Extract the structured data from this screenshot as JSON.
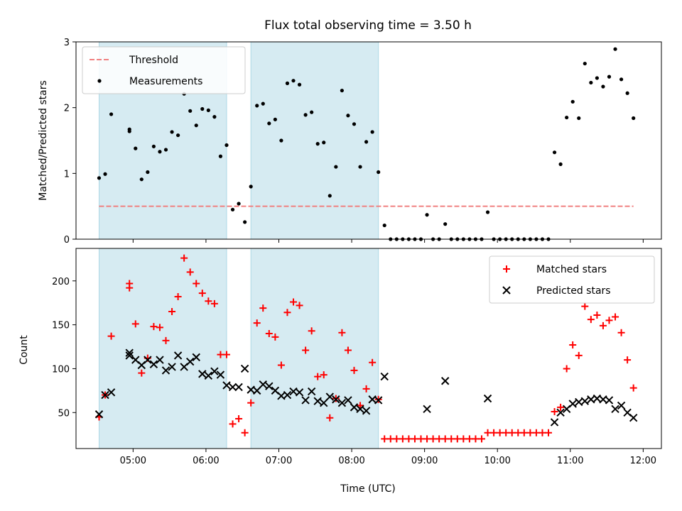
{
  "chart_data": [
    {
      "type": "scatter",
      "title": "Flux total observing time = 3.50 h",
      "xlabel": "",
      "ylabel": "Matched/Predicted stars",
      "ylim": [
        0,
        3
      ],
      "xlim": [
        "04:13",
        "12:15"
      ],
      "yticks": [
        "0",
        "1",
        "2",
        "3"
      ],
      "legend": {
        "position": "top-left",
        "entries": [
          "Threshold",
          "Measurements"
        ]
      },
      "shaded_intervals": [
        [
          "04:32",
          "06:17"
        ],
        [
          "06:37",
          "08:22"
        ]
      ],
      "threshold": {
        "name": "Threshold",
        "y": 0.5,
        "x": [
          "04:32",
          "11:52"
        ],
        "color": "#f08080"
      },
      "series": [
        {
          "name": "Measurements",
          "color": "#000000",
          "points": [
            [
              "04:32",
              0.93
            ],
            [
              "04:37",
              0.99
            ],
            [
              "04:42",
              1.9
            ],
            [
              "04:57",
              1.67
            ],
            [
              "04:57",
              1.64
            ],
            [
              "05:02",
              1.38
            ],
            [
              "05:07",
              0.91
            ],
            [
              "05:12",
              1.02
            ],
            [
              "05:17",
              1.41
            ],
            [
              "05:22",
              1.33
            ],
            [
              "05:27",
              1.36
            ],
            [
              "05:32",
              1.63
            ],
            [
              "05:37",
              1.58
            ],
            [
              "05:42",
              2.21
            ],
            [
              "05:47",
              1.95
            ],
            [
              "05:52",
              1.73
            ],
            [
              "05:57",
              1.98
            ],
            [
              "06:02",
              1.96
            ],
            [
              "06:07",
              1.86
            ],
            [
              "06:12",
              1.26
            ],
            [
              "06:17",
              1.43
            ],
            [
              "06:22",
              0.45
            ],
            [
              "06:27",
              0.54
            ],
            [
              "06:32",
              0.26
            ],
            [
              "06:37",
              0.8
            ],
            [
              "06:42",
              2.03
            ],
            [
              "06:47",
              2.06
            ],
            [
              "06:52",
              1.76
            ],
            [
              "06:57",
              1.82
            ],
            [
              "07:02",
              1.5
            ],
            [
              "07:07",
              2.37
            ],
            [
              "07:12",
              2.41
            ],
            [
              "07:17",
              2.35
            ],
            [
              "07:22",
              1.89
            ],
            [
              "07:27",
              1.93
            ],
            [
              "07:32",
              1.45
            ],
            [
              "07:37",
              1.47
            ],
            [
              "07:42",
              0.66
            ],
            [
              "07:47",
              1.1
            ],
            [
              "07:52",
              2.26
            ],
            [
              "07:57",
              1.88
            ],
            [
              "08:02",
              1.75
            ],
            [
              "08:07",
              1.1
            ],
            [
              "08:12",
              1.48
            ],
            [
              "08:17",
              1.63
            ],
            [
              "08:22",
              1.02
            ],
            [
              "08:27",
              0.21
            ],
            [
              "08:32",
              0
            ],
            [
              "08:37",
              0
            ],
            [
              "08:42",
              0
            ],
            [
              "08:47",
              0
            ],
            [
              "08:52",
              0
            ],
            [
              "08:57",
              0
            ],
            [
              "09:02",
              0.37
            ],
            [
              "09:07",
              0
            ],
            [
              "09:12",
              0
            ],
            [
              "09:17",
              0.23
            ],
            [
              "09:22",
              0
            ],
            [
              "09:27",
              0
            ],
            [
              "09:32",
              0
            ],
            [
              "09:37",
              0
            ],
            [
              "09:42",
              0
            ],
            [
              "09:47",
              0
            ],
            [
              "09:52",
              0.41
            ],
            [
              "09:57",
              0
            ],
            [
              "10:02",
              0
            ],
            [
              "10:07",
              0
            ],
            [
              "10:12",
              0
            ],
            [
              "10:17",
              0
            ],
            [
              "10:22",
              0
            ],
            [
              "10:27",
              0
            ],
            [
              "10:32",
              0
            ],
            [
              "10:37",
              0
            ],
            [
              "10:42",
              0
            ],
            [
              "10:47",
              1.32
            ],
            [
              "10:52",
              1.14
            ],
            [
              "10:57",
              1.85
            ],
            [
              "11:02",
              2.09
            ],
            [
              "11:07",
              1.84
            ],
            [
              "11:12",
              2.67
            ],
            [
              "11:17",
              2.38
            ],
            [
              "11:22",
              2.45
            ],
            [
              "11:27",
              2.32
            ],
            [
              "11:32",
              2.47
            ],
            [
              "11:37",
              2.89
            ],
            [
              "11:42",
              2.43
            ],
            [
              "11:47",
              2.22
            ],
            [
              "11:52",
              1.84
            ]
          ]
        }
      ]
    },
    {
      "type": "scatter",
      "title": "",
      "xlabel": "Time (UTC)",
      "ylabel": "Count",
      "ylim": [
        9,
        237
      ],
      "xlim": [
        "04:13",
        "12:15"
      ],
      "xticks": [
        "05:00",
        "06:00",
        "07:00",
        "08:00",
        "09:00",
        "10:00",
        "11:00",
        "12:00"
      ],
      "yticks": [
        "50",
        "100",
        "150",
        "200"
      ],
      "legend": {
        "position": "top-right",
        "entries": [
          "Matched stars",
          "Predicted stars"
        ]
      },
      "shaded_intervals": [
        [
          "04:32",
          "06:17"
        ],
        [
          "06:37",
          "08:22"
        ]
      ],
      "series": [
        {
          "name": "Matched stars",
          "marker": "plus",
          "color": "#ff0000",
          "points": [
            [
              "04:32",
              45
            ],
            [
              "04:37",
              70
            ],
            [
              "04:42",
              137
            ],
            [
              "04:57",
              197
            ],
            [
              "04:57",
              192
            ],
            [
              "05:02",
              151
            ],
            [
              "05:07",
              95
            ],
            [
              "05:12",
              112
            ],
            [
              "05:17",
              148
            ],
            [
              "05:22",
              147
            ],
            [
              "05:27",
              132
            ],
            [
              "05:32",
              165
            ],
            [
              "05:37",
              182
            ],
            [
              "05:42",
              226
            ],
            [
              "05:47",
              210
            ],
            [
              "05:52",
              197
            ],
            [
              "05:57",
              186
            ],
            [
              "06:02",
              177
            ],
            [
              "06:07",
              174
            ],
            [
              "06:12",
              116
            ],
            [
              "06:17",
              116
            ],
            [
              "06:22",
              37
            ],
            [
              "06:27",
              43
            ],
            [
              "06:32",
              27
            ],
            [
              "06:37",
              61
            ],
            [
              "06:42",
              152
            ],
            [
              "06:47",
              169
            ],
            [
              "06:52",
              140
            ],
            [
              "06:57",
              136
            ],
            [
              "07:02",
              104
            ],
            [
              "07:07",
              164
            ],
            [
              "07:12",
              176
            ],
            [
              "07:17",
              172
            ],
            [
              "07:22",
              121
            ],
            [
              "07:27",
              143
            ],
            [
              "07:32",
              91
            ],
            [
              "07:37",
              93
            ],
            [
              "07:42",
              44
            ],
            [
              "07:47",
              66
            ],
            [
              "07:52",
              141
            ],
            [
              "07:57",
              121
            ],
            [
              "08:02",
              98
            ],
            [
              "08:07",
              58
            ],
            [
              "08:12",
              77
            ],
            [
              "08:17",
              107
            ],
            [
              "08:22",
              65
            ],
            [
              "08:27",
              20
            ],
            [
              "08:32",
              20
            ],
            [
              "08:37",
              20
            ],
            [
              "08:42",
              20
            ],
            [
              "08:47",
              20
            ],
            [
              "08:52",
              20
            ],
            [
              "08:57",
              20
            ],
            [
              "09:02",
              20
            ],
            [
              "09:07",
              20
            ],
            [
              "09:12",
              20
            ],
            [
              "09:17",
              20
            ],
            [
              "09:22",
              20
            ],
            [
              "09:27",
              20
            ],
            [
              "09:32",
              20
            ],
            [
              "09:37",
              20
            ],
            [
              "09:42",
              20
            ],
            [
              "09:47",
              20
            ],
            [
              "09:52",
              27
            ],
            [
              "09:57",
              27
            ],
            [
              "10:02",
              27
            ],
            [
              "10:07",
              27
            ],
            [
              "10:12",
              27
            ],
            [
              "10:17",
              27
            ],
            [
              "10:22",
              27
            ],
            [
              "10:27",
              27
            ],
            [
              "10:32",
              27
            ],
            [
              "10:37",
              27
            ],
            [
              "10:42",
              27
            ],
            [
              "10:47",
              51
            ],
            [
              "10:52",
              56
            ],
            [
              "10:57",
              100
            ],
            [
              "11:02",
              127
            ],
            [
              "11:07",
              115
            ],
            [
              "11:12",
              171
            ],
            [
              "11:17",
              156
            ],
            [
              "11:22",
              161
            ],
            [
              "11:27",
              149
            ],
            [
              "11:32",
              155
            ],
            [
              "11:37",
              159
            ],
            [
              "11:42",
              141
            ],
            [
              "11:47",
              110
            ],
            [
              "11:52",
              78
            ]
          ]
        },
        {
          "name": "Predicted stars",
          "marker": "x",
          "color": "#000000",
          "points": [
            [
              "04:32",
              48
            ],
            [
              "04:37",
              70
            ],
            [
              "04:42",
              73
            ],
            [
              "04:57",
              118
            ],
            [
              "04:57",
              115
            ],
            [
              "05:02",
              110
            ],
            [
              "05:07",
              104
            ],
            [
              "05:12",
              110
            ],
            [
              "05:17",
              105
            ],
            [
              "05:22",
              110
            ],
            [
              "05:27",
              98
            ],
            [
              "05:32",
              102
            ],
            [
              "05:37",
              115
            ],
            [
              "05:42",
              102
            ],
            [
              "05:47",
              108
            ],
            [
              "05:52",
              113
            ],
            [
              "05:57",
              94
            ],
            [
              "06:02",
              92
            ],
            [
              "06:07",
              97
            ],
            [
              "06:12",
              93
            ],
            [
              "06:17",
              81
            ],
            [
              "06:22",
              79
            ],
            [
              "06:27",
              79
            ],
            [
              "06:32",
              100
            ],
            [
              "06:37",
              76
            ],
            [
              "06:42",
              75
            ],
            [
              "06:47",
              82
            ],
            [
              "06:52",
              80
            ],
            [
              "06:57",
              75
            ],
            [
              "07:02",
              69
            ],
            [
              "07:07",
              70
            ],
            [
              "07:12",
              74
            ],
            [
              "07:17",
              73
            ],
            [
              "07:22",
              64
            ],
            [
              "07:27",
              74
            ],
            [
              "07:32",
              63
            ],
            [
              "07:37",
              61
            ],
            [
              "07:42",
              68
            ],
            [
              "07:47",
              65
            ],
            [
              "07:52",
              61
            ],
            [
              "07:57",
              64
            ],
            [
              "08:02",
              56
            ],
            [
              "08:07",
              54
            ],
            [
              "08:12",
              52
            ],
            [
              "08:17",
              65
            ],
            [
              "08:22",
              64
            ],
            [
              "08:27",
              91
            ],
            [
              "09:02",
              54
            ],
            [
              "09:17",
              86
            ],
            [
              "09:52",
              66
            ],
            [
              "10:47",
              39
            ],
            [
              "10:52",
              50
            ],
            [
              "10:57",
              54
            ],
            [
              "11:02",
              60
            ],
            [
              "11:07",
              62
            ],
            [
              "11:12",
              63
            ],
            [
              "11:17",
              65
            ],
            [
              "11:22",
              66
            ],
            [
              "11:27",
              65
            ],
            [
              "11:32",
              64
            ],
            [
              "11:37",
              54
            ],
            [
              "11:42",
              58
            ],
            [
              "11:47",
              50
            ],
            [
              "11:52",
              44
            ]
          ]
        }
      ]
    }
  ]
}
